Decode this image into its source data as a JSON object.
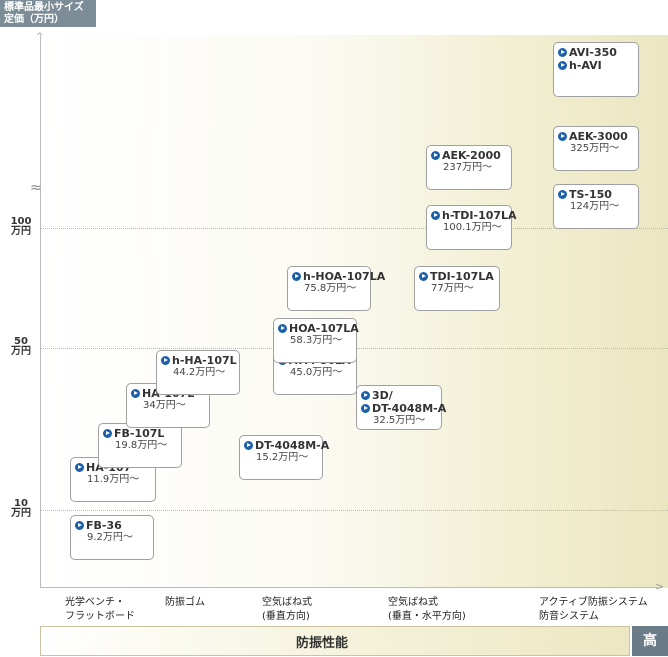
{
  "unit_label": [
    "標準品最小サイズ",
    "定価（万円）"
  ],
  "performance_label": "防振性能",
  "high_label": "高",
  "chart_data": {
    "type": "scatter",
    "title": "",
    "xlabel": "防振性能",
    "ylabel": "標準品最小サイズ 定価（万円）",
    "y_ticks": [
      {
        "value": 10,
        "label": [
          "10",
          "万円"
        ]
      },
      {
        "value": 50,
        "label": [
          "50",
          "万円"
        ]
      },
      {
        "value": 100,
        "label": [
          "100",
          "万円"
        ]
      }
    ],
    "categories": [
      [
        "光学ベンチ・",
        "フラットボード"
      ],
      [
        "防振ゴム"
      ],
      [
        "空気ばね式",
        "(垂直方向)"
      ],
      [
        "空気ばね式",
        "(垂直・水平方向)"
      ],
      [
        "アクティブ防振システム",
        "防音システム"
      ]
    ],
    "points": [
      {
        "names": [
          "FB-36"
        ],
        "price": "9.2万円～",
        "value": 9.2,
        "category": 0
      },
      {
        "names": [
          "HA-107"
        ],
        "price": "11.9万円～",
        "value": 11.9,
        "category": 0
      },
      {
        "names": [
          "FB-107L"
        ],
        "price": "19.8万円～",
        "value": 19.8,
        "category": 1
      },
      {
        "names": [
          "HA-107L"
        ],
        "price": "34万円～",
        "value": 34,
        "category": 1
      },
      {
        "names": [
          "h-HA-107L"
        ],
        "price": "44.2万円～",
        "value": 44.2,
        "category": 1
      },
      {
        "names": [
          "DT-4048M-A"
        ],
        "price": "15.2万円～",
        "value": 15.2,
        "category": 2
      },
      {
        "names": [
          "ATM-86LA"
        ],
        "price": "45.0万円～",
        "value": 45.0,
        "category": 2
      },
      {
        "names": [
          "HOA-107LA"
        ],
        "price": "58.3万円～",
        "value": 58.3,
        "category": 2
      },
      {
        "names": [
          "h-HOA-107LA"
        ],
        "price": "75.8万円～",
        "value": 75.8,
        "category": 2
      },
      {
        "names": [
          "3D/",
          "DT-4048M-A"
        ],
        "price": "32.5万円～",
        "value": 32.5,
        "category": 3
      },
      {
        "names": [
          "TDI-107LA"
        ],
        "price": "77万円～",
        "value": 77,
        "category": 3
      },
      {
        "names": [
          "h-TDI-107LA"
        ],
        "price": "100.1万円～",
        "value": 100.1,
        "category": 3
      },
      {
        "names": [
          "AEK-2000"
        ],
        "price": "237万円～",
        "value": 237,
        "category": 3
      },
      {
        "names": [
          "TS-150"
        ],
        "price": "124万円～",
        "value": 124,
        "category": 4
      },
      {
        "names": [
          "AEK-3000"
        ],
        "price": "325万円～",
        "value": 325,
        "category": 4
      },
      {
        "names": [
          "AVI-350",
          "h-AVI"
        ],
        "price": "",
        "value": null,
        "category": 4
      }
    ],
    "grid": true,
    "y_axis_break": true
  }
}
